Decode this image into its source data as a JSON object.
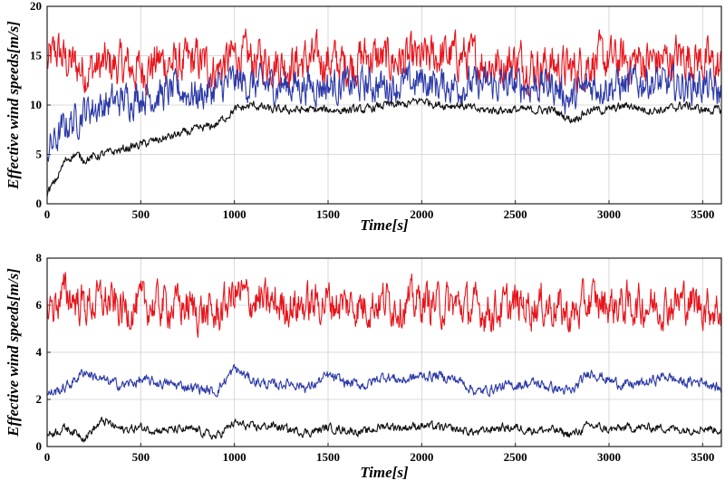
{
  "chart_data": [
    {
      "type": "line",
      "xlabel": "Time[s]",
      "ylabel": "Effective wind speeds[m/s]",
      "xlim": [
        0,
        3600
      ],
      "ylim": [
        0,
        20
      ],
      "xticks": [
        "0",
        "500",
        "1000",
        "1500",
        "2000",
        "2500",
        "3000",
        "3500"
      ],
      "yticks": [
        "0",
        "5",
        "10",
        "15",
        "20"
      ],
      "grid": true,
      "series": [
        {
          "color": "#e8141b",
          "x": [
            0,
            50,
            100,
            150,
            200,
            300,
            400,
            500,
            600,
            700,
            800,
            900,
            1000,
            1100,
            1200,
            1300,
            1400,
            1500,
            1600,
            1700,
            1800,
            1900,
            2000,
            2100,
            2200,
            2300,
            2400,
            2500,
            2600,
            2700,
            2800,
            2900,
            3000,
            3100,
            3200,
            3300,
            3400,
            3500,
            3600
          ],
          "values": [
            14,
            15.5,
            14.5,
            14,
            13.5,
            14,
            14,
            13.5,
            14.5,
            14,
            14.5,
            13.5,
            15,
            14.5,
            14.5,
            14,
            14.5,
            14.5,
            14,
            15,
            14.5,
            14.5,
            14.5,
            15,
            15,
            14.5,
            14,
            14.5,
            14,
            14,
            13.5,
            14.5,
            14.5,
            14.5,
            14.5,
            14.5,
            15,
            14.5,
            13.5
          ],
          "noise": 1.8
        },
        {
          "color": "#2c3aa8",
          "x": [
            0,
            50,
            100,
            150,
            200,
            300,
            400,
            500,
            600,
            700,
            800,
            900,
            1000,
            1100,
            1200,
            1300,
            1400,
            1500,
            1600,
            1700,
            1800,
            1900,
            2000,
            2100,
            2200,
            2300,
            2400,
            2500,
            2600,
            2700,
            2800,
            2900,
            3000,
            3100,
            3200,
            3300,
            3400,
            3500,
            3600
          ],
          "values": [
            5.5,
            6.5,
            8,
            8.5,
            9.5,
            10,
            10.5,
            11,
            11,
            11.5,
            11,
            11.5,
            12.5,
            12,
            12,
            12,
            12,
            12,
            12,
            12,
            12,
            12,
            12.5,
            12,
            12,
            12,
            12,
            12,
            12,
            12,
            10.5,
            12,
            12,
            12,
            12.5,
            12,
            12,
            12,
            11
          ],
          "noise": 1.4
        },
        {
          "color": "#111111",
          "x": [
            0,
            50,
            100,
            150,
            200,
            300,
            400,
            500,
            600,
            700,
            800,
            900,
            1000,
            1100,
            1200,
            1300,
            1400,
            1500,
            1600,
            1700,
            1800,
            1900,
            2000,
            2100,
            2200,
            2300,
            2400,
            2500,
            2600,
            2700,
            2800,
            2900,
            3000,
            3100,
            3200,
            3300,
            3400,
            3500,
            3600
          ],
          "values": [
            1,
            2.5,
            4.5,
            5,
            4.5,
            5,
            5.5,
            6,
            6.5,
            7,
            7.5,
            8,
            9.5,
            10,
            9.5,
            9.5,
            9.5,
            9.5,
            9.5,
            9.5,
            10,
            10,
            10.5,
            10,
            10,
            9.5,
            9.5,
            9.5,
            9.5,
            9.5,
            8.5,
            9.5,
            9.5,
            10,
            9.5,
            9.5,
            10,
            9.5,
            9.5
          ],
          "noise": 0.35
        }
      ]
    },
    {
      "type": "line",
      "xlabel": "Time[s]",
      "ylabel": "Effective wind speeds[m/s]",
      "xlim": [
        0,
        3600
      ],
      "ylim": [
        0,
        8
      ],
      "xticks": [
        "0",
        "500",
        "1000",
        "1500",
        "2000",
        "2500",
        "3000",
        "3500"
      ],
      "yticks": [
        "0",
        "2",
        "4",
        "6",
        "8"
      ],
      "grid": true,
      "series": [
        {
          "color": "#e8141b",
          "x": [
            0,
            100,
            200,
            300,
            400,
            500,
            600,
            700,
            800,
            900,
            1000,
            1100,
            1200,
            1300,
            1400,
            1500,
            1600,
            1700,
            1800,
            1900,
            2000,
            2100,
            2200,
            2300,
            2400,
            2500,
            2600,
            2700,
            2800,
            2900,
            3000,
            3100,
            3200,
            3300,
            3400,
            3500,
            3600
          ],
          "values": [
            5.8,
            6.5,
            6,
            6.2,
            5.8,
            6,
            6,
            6,
            5.8,
            5.5,
            6.5,
            6.2,
            6,
            6,
            6,
            6.2,
            6,
            6,
            6.2,
            6,
            6.2,
            6,
            6,
            5.8,
            5.8,
            6,
            6,
            6,
            5.5,
            6.2,
            6,
            6,
            6,
            6,
            6.2,
            6,
            5.8
          ],
          "noise": 0.7
        },
        {
          "color": "#2c3aa8",
          "x": [
            0,
            100,
            200,
            300,
            400,
            500,
            600,
            700,
            800,
            900,
            1000,
            1100,
            1200,
            1300,
            1400,
            1500,
            1600,
            1700,
            1800,
            1900,
            2000,
            2100,
            2200,
            2300,
            2400,
            2500,
            2600,
            2700,
            2800,
            2900,
            3000,
            3100,
            3200,
            3300,
            3400,
            3500,
            3600
          ],
          "values": [
            2.2,
            2.5,
            3.2,
            2.8,
            2.6,
            2.8,
            2.7,
            2.6,
            2.5,
            2.3,
            3.3,
            2.8,
            2.6,
            2.7,
            2.5,
            3,
            2.7,
            2.6,
            3,
            2.8,
            3,
            3,
            2.8,
            2.3,
            2.5,
            2.6,
            2.7,
            2.5,
            2.3,
            3.2,
            2.8,
            2.6,
            2.7,
            3,
            2.7,
            2.8,
            2.4
          ],
          "noise": 0.18
        },
        {
          "color": "#111111",
          "x": [
            0,
            100,
            200,
            300,
            400,
            500,
            600,
            700,
            800,
            900,
            1000,
            1100,
            1200,
            1300,
            1400,
            1500,
            1600,
            1700,
            1800,
            1900,
            2000,
            2100,
            2200,
            2300,
            2400,
            2500,
            2600,
            2700,
            2800,
            2900,
            3000,
            3100,
            3200,
            3300,
            3400,
            3500,
            3600
          ],
          "values": [
            0.5,
            0.8,
            0.4,
            1.1,
            0.7,
            0.8,
            0.7,
            0.7,
            0.7,
            0.4,
            1,
            0.8,
            0.9,
            0.7,
            0.6,
            0.8,
            0.7,
            0.6,
            0.9,
            0.8,
            0.9,
            0.8,
            0.7,
            0.6,
            0.8,
            0.8,
            0.7,
            0.7,
            0.5,
            0.9,
            0.7,
            0.8,
            0.8,
            0.8,
            0.7,
            0.8,
            0.7
          ],
          "noise": 0.15
        }
      ]
    }
  ]
}
